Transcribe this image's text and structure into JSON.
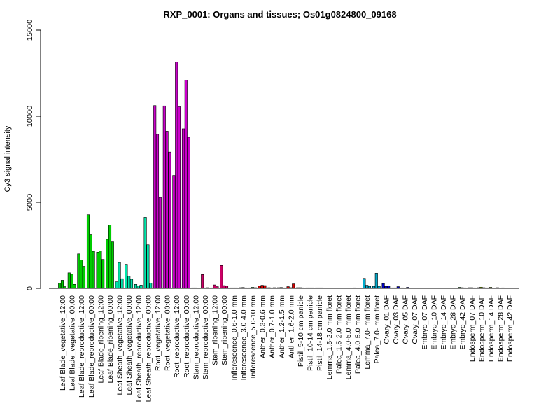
{
  "chart_data": {
    "type": "bar",
    "title": "RXP_0001: Organs and tissues; Os01g0824800_09168",
    "ylabel": "Cy3 signal intensity",
    "xlabel": "",
    "ylim": [
      0,
      15000
    ],
    "yticks": [
      "0",
      "5000",
      "10000",
      "15000"
    ],
    "grid": false,
    "categories": [
      "Leaf Blade_vegetative_12:00",
      "Leaf Blade_vegetative_00:00",
      "Leaf Blade_reproductive_12:00",
      "Leaf Blade_reproductive_00:00",
      "Leaf Blade_ripening_12:00",
      "Leaf Blade_ripening_00:00",
      "Leaf Sheath_vegetative_12:00",
      "Leaf Sheath_vegetative_00:00",
      "Leaf Sheath_reproductive_12:00",
      "Leaf Sheath_reproductive_00:00",
      "Root_vegetative_12:00",
      "Root_vegetative_00:00",
      "Root_reproductive_12:00",
      "Root_reproductive_00:00",
      "Stem_reproductive_12:00",
      "Stem_reproductive_00:00",
      "Stem_ripening_12:00",
      "Stem_ripening_00:00",
      "Inflorescence_0.6-1.0 mm",
      "Inflorescence_3.0-4.0 mm",
      "Inflorescence_5.0-10 mm",
      "Anther_0.3-0.6 mm",
      "Anther_0.7-1.0 mm",
      "Anther_1.2-1.5 mm",
      "Anther_1.6-2.0 mm",
      "Pistil_5-10 cm panicle",
      "Pistil_10-14 cm panicle",
      "Pistil_14-18 cm panicle",
      "Lemma_1.5-2.0 mm floret",
      "Palea_1.5-2.0 mm floret",
      "Lemma_4.0-5.0 mm floret",
      "Palea_4.0-5.0 mm floret",
      "Lemma_7.0- mm floret",
      "Palea_7.0- mm floret",
      "Ovary_01 DAF",
      "Ovary_03 DAF",
      "Ovary_05 DAF",
      "Ovary_07 DAF",
      "Embryo_07 DAF",
      "Embryo_10 DAF",
      "Embryo_14 DAF",
      "Embryo_28 DAF",
      "Embryo_42 DAF",
      "Endosperm_07 DAF",
      "Endosperm_10 DAF",
      "Endosperm_14 DAF",
      "Endosperm_28 DAF",
      "Endosperm_42 DAF"
    ],
    "group_colors": [
      "#00cc00",
      "#00cc00",
      "#00cc00",
      "#00cc00",
      "#00cc00",
      "#00cc00",
      "#00e5aa",
      "#00e5aa",
      "#00e5aa",
      "#00e5aa",
      "#cc00cc",
      "#cc00cc",
      "#cc00cc",
      "#cc00cc",
      "#cc0066",
      "#cc0066",
      "#cc0066",
      "#cc0066",
      "#00cc33",
      "#00cc33",
      "#00cc33",
      "#dd0000",
      "#dd0000",
      "#dd0000",
      "#dd0000",
      "#ff8866",
      "#ff8866",
      "#ff8866",
      "#00aacc",
      "#00aacc",
      "#00aacc",
      "#00aacc",
      "#00aacc",
      "#00aacc",
      "#0000cc",
      "#0000cc",
      "#0000cc",
      "#0000cc",
      "#33aa33",
      "#33aa33",
      "#33aa33",
      "#33aa33",
      "#33aa33",
      "#99cc00",
      "#99cc00",
      "#99cc00",
      "#99cc00",
      "#99cc00"
    ],
    "replicates": [
      [
        300,
        470,
        100
      ],
      [
        900,
        820,
        230
      ],
      [
        2000,
        1650,
        1280
      ],
      [
        4280,
        3150,
        2150
      ],
      [
        2100,
        2170,
        1680
      ],
      [
        2850,
        3680,
        2700
      ],
      [
        380,
        1500,
        560
      ],
      [
        1400,
        700,
        530
      ],
      [
        230,
        150,
        190
      ],
      [
        4130,
        2530,
        300
      ],
      [
        10620,
        8950,
        5280
      ],
      [
        10600,
        9130,
        7920
      ],
      [
        6560,
        13150,
        10550
      ],
      [
        9270,
        12100,
        8780
      ],
      [
        30,
        30,
        20
      ],
      [
        800,
        30,
        40
      ],
      [
        30,
        200,
        100
      ],
      [
        1330,
        160,
        150
      ],
      [
        30,
        30,
        30
      ],
      [
        40,
        50,
        30
      ],
      [
        30,
        60,
        40
      ],
      [
        150,
        180,
        160
      ],
      [
        40,
        30,
        40
      ],
      [
        40,
        50,
        30
      ],
      [
        100,
        40,
        260
      ],
      [
        40,
        40,
        30
      ],
      [
        30,
        30,
        30
      ],
      [
        30,
        30,
        30
      ],
      [
        20,
        20,
        20
      ],
      [
        20,
        20,
        20
      ],
      [
        20,
        20,
        20
      ],
      [
        30,
        20,
        20
      ],
      [
        580,
        180,
        120
      ],
      [
        120,
        880,
        120
      ],
      [
        280,
        120,
        140
      ],
      [
        30,
        30,
        100
      ],
      [
        30,
        20,
        60
      ],
      [
        20,
        20,
        20
      ],
      [
        20,
        20,
        20
      ],
      [
        20,
        20,
        20
      ],
      [
        20,
        20,
        20
      ],
      [
        20,
        20,
        20
      ],
      [
        60,
        40,
        30
      ],
      [
        40,
        40,
        30
      ],
      [
        40,
        70,
        40
      ],
      [
        30,
        60,
        20
      ],
      [
        40,
        20,
        30
      ],
      [
        20,
        20,
        20
      ]
    ]
  }
}
